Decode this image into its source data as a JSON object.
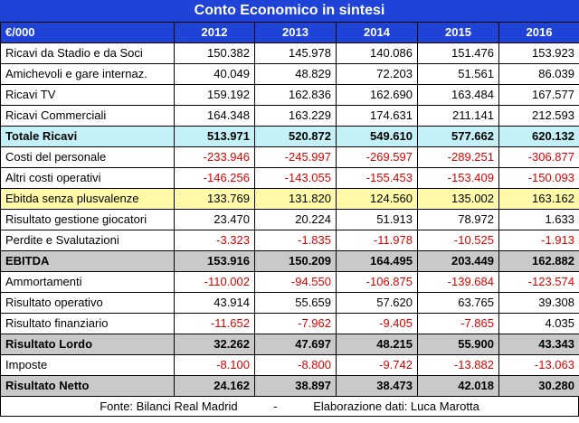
{
  "title": "Conto Economico in sintesi",
  "headers": [
    "€/000",
    "2012",
    "2013",
    "2014",
    "2015",
    "2016"
  ],
  "rows": [
    {
      "label": "Ricavi da Stadio e da Soci",
      "values": [
        "150.382",
        "145.978",
        "140.086",
        "151.476",
        "153.923"
      ],
      "style": "normal"
    },
    {
      "label": "Amichevoli e gare internaz.",
      "values": [
        "40.049",
        "48.829",
        "72.203",
        "51.561",
        "86.039"
      ],
      "style": "normal"
    },
    {
      "label": "Ricavi TV",
      "values": [
        "159.192",
        "162.836",
        "162.690",
        "163.484",
        "167.577"
      ],
      "style": "normal"
    },
    {
      "label": "Ricavi Commerciali",
      "values": [
        "164.348",
        "163.229",
        "174.631",
        "211.141",
        "212.593"
      ],
      "style": "normal"
    },
    {
      "label": "Totale Ricavi",
      "values": [
        "513.971",
        "520.872",
        "549.610",
        "577.662",
        "620.132"
      ],
      "style": "cyan"
    },
    {
      "label": "Costi del personale",
      "values": [
        "-233.946",
        "-245.997",
        "-269.597",
        "-289.251",
        "-306.877"
      ],
      "style": "normal"
    },
    {
      "label": "Altri costi operativi",
      "values": [
        "-146.256",
        "-143.055",
        "-155.453",
        "-153.409",
        "-150.093"
      ],
      "style": "normal"
    },
    {
      "label": "Ebitda senza plusvalenze",
      "values": [
        "133.769",
        "131.820",
        "124.560",
        "135.002",
        "163.162"
      ],
      "style": "yellow"
    },
    {
      "label": "Risultato gestione giocatori",
      "values": [
        "23.470",
        "20.224",
        "51.913",
        "78.972",
        "1.633"
      ],
      "style": "normal"
    },
    {
      "label": "Perdite e Svalutazioni",
      "values": [
        "-3.323",
        "-1.835",
        "-11.978",
        "-10.525",
        "-1.913"
      ],
      "style": "normal"
    },
    {
      "label": "EBITDA",
      "values": [
        "153.916",
        "150.209",
        "164.495",
        "203.449",
        "162.882"
      ],
      "style": "gray"
    },
    {
      "label": "Ammortamenti",
      "values": [
        "-110.002",
        "-94.550",
        "-106.875",
        "-139.684",
        "-123.574"
      ],
      "style": "normal"
    },
    {
      "label": "Risultato operativo",
      "values": [
        "43.914",
        "55.659",
        "57.620",
        "63.765",
        "39.308"
      ],
      "style": "normal"
    },
    {
      "label": "Risultato finanziario",
      "values": [
        "-11.652",
        "-7.962",
        "-9.405",
        "-7.865",
        "4.035"
      ],
      "style": "normal"
    },
    {
      "label": "Risultato Lordo",
      "values": [
        "32.262",
        "47.697",
        "48.215",
        "55.900",
        "43.343"
      ],
      "style": "gray"
    },
    {
      "label": "Imposte",
      "values": [
        "-8.100",
        "-8.800",
        "-9.742",
        "-13.882",
        "-13.063"
      ],
      "style": "normal"
    },
    {
      "label": "Risultato Netto",
      "values": [
        "24.162",
        "38.897",
        "38.473",
        "42.018",
        "30.280"
      ],
      "style": "gray"
    }
  ],
  "footer": {
    "source": "Fonte: Bilanci Real Madrid",
    "separator": "-",
    "author": "Elaborazione dati: Luca Marotta"
  }
}
